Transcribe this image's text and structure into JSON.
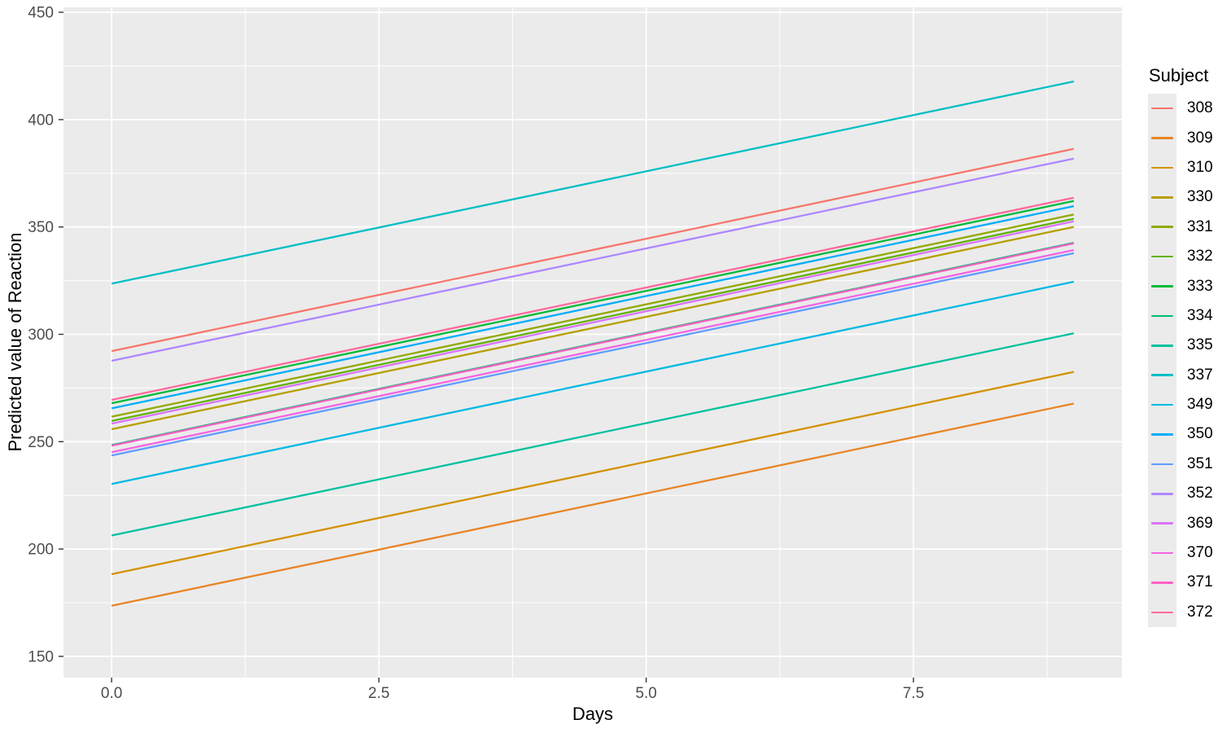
{
  "page": {
    "background": "#FFFFFF"
  },
  "chart_data": {
    "type": "line",
    "title": "",
    "xlabel": "Days",
    "ylabel": "Predicted value of Reaction",
    "legend_title": "Subject",
    "legend_position": "right",
    "grid": true,
    "panel_background": "#EBEBEB",
    "gridline_major_color": "#FFFFFF",
    "gridline_minor_color": "#FFFFFF",
    "tick_mark_color": "#333333",
    "tick_label_color": "#4D4D4D",
    "axis_title_color": "#000000",
    "xlim": [
      -0.45,
      9.45
    ],
    "ylim": [
      140.1,
      452.3
    ],
    "x_range": [
      0,
      9
    ],
    "common_slope": 10.467,
    "x_ticks": {
      "values": [
        0,
        2.5,
        5,
        7.5
      ],
      "labels": [
        "0.0",
        "2.5",
        "5.0",
        "7.5"
      ]
    },
    "x_minor_ticks": [
      1.25,
      3.75,
      6.25,
      8.75
    ],
    "y_ticks": {
      "values": [
        150,
        200,
        250,
        300,
        350,
        400,
        450
      ],
      "labels": [
        "150",
        "200",
        "250",
        "300",
        "350",
        "400",
        "450"
      ]
    },
    "y_minor_ticks": [
      175,
      225,
      275,
      325,
      375,
      425
    ],
    "series": [
      {
        "name": "308",
        "color": "#F8766D",
        "intercept": 292.19,
        "y_start": 292.19,
        "y_end": 386.39
      },
      {
        "name": "309",
        "color": "#E88526",
        "intercept": 173.56,
        "y_start": 173.56,
        "y_end": 267.76
      },
      {
        "name": "310",
        "color": "#D39200",
        "intercept": 188.3,
        "y_start": 188.3,
        "y_end": 282.5
      },
      {
        "name": "330",
        "color": "#B79F00",
        "intercept": 255.81,
        "y_start": 255.81,
        "y_end": 350.01
      },
      {
        "name": "331",
        "color": "#93AA00",
        "intercept": 261.62,
        "y_start": 261.62,
        "y_end": 355.82
      },
      {
        "name": "332",
        "color": "#5EB300",
        "intercept": 259.63,
        "y_start": 259.63,
        "y_end": 353.83
      },
      {
        "name": "333",
        "color": "#00BA38",
        "intercept": 267.91,
        "y_start": 267.91,
        "y_end": 362.11
      },
      {
        "name": "334",
        "color": "#00BF74",
        "intercept": 248.42,
        "y_start": 248.42,
        "y_end": 342.62
      },
      {
        "name": "335",
        "color": "#00C19F",
        "intercept": 206.29,
        "y_start": 206.29,
        "y_end": 300.49
      },
      {
        "name": "337",
        "color": "#00BFC4",
        "intercept": 323.59,
        "y_start": 323.59,
        "y_end": 417.79
      },
      {
        "name": "349",
        "color": "#00B9E3",
        "intercept": 230.29,
        "y_start": 230.29,
        "y_end": 324.49
      },
      {
        "name": "350",
        "color": "#00ADFA",
        "intercept": 265.5,
        "y_start": 265.5,
        "y_end": 359.7
      },
      {
        "name": "351",
        "color": "#619CFF",
        "intercept": 243.58,
        "y_start": 243.58,
        "y_end": 337.78
      },
      {
        "name": "352",
        "color": "#AE87FF",
        "intercept": 287.66,
        "y_start": 287.66,
        "y_end": 381.86
      },
      {
        "name": "369",
        "color": "#DB72FB",
        "intercept": 258.41,
        "y_start": 258.41,
        "y_end": 352.61
      },
      {
        "name": "370",
        "color": "#F564E3",
        "intercept": 245.06,
        "y_start": 245.06,
        "y_end": 339.26
      },
      {
        "name": "371",
        "color": "#FF61C3",
        "intercept": 248.12,
        "y_start": 248.12,
        "y_end": 342.32
      },
      {
        "name": "372",
        "color": "#FF699C",
        "intercept": 269.45,
        "y_start": 269.45,
        "y_end": 363.65
      }
    ]
  }
}
